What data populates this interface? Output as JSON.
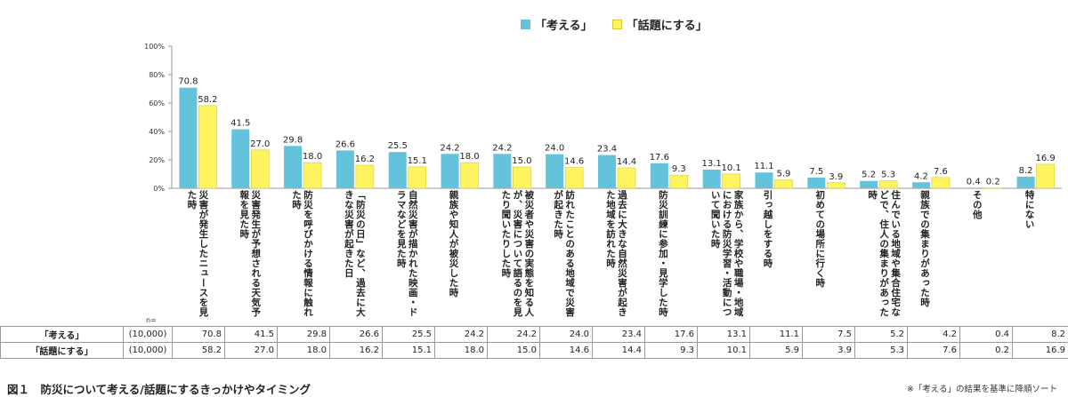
{
  "chart_data": {
    "type": "bar",
    "ylim": [
      0,
      100
    ],
    "yticks": [
      0,
      20,
      40,
      60,
      80,
      100
    ],
    "ytick_labels": [
      "0%",
      "20%",
      "40%",
      "60%",
      "80%",
      "100%"
    ],
    "legend_position": "top",
    "categories": [
      "災害が発生したニュースを見た時",
      "災害発生が予想される天気予報を見た時",
      "防災を呼びかける情報に触れた時",
      "「防災の日」など、過去に大きな災害が起きた日",
      "自然災害が描かれた映画・ドラマなどを見た時",
      "親族や知人が被災した時",
      "被災者や災害の実態を知る人が、災害について語るのを見たり聞いたりした時",
      "訪れたことのある地域で災害が起きた時",
      "過去に大きな自然災害が起きた地域を訪れた時",
      "防災訓練に参加・見学した時",
      "家族から、学校や職場・地域における防災学習・活動について聞いた時",
      "引っ越しをする時",
      "初めての場所に行く時",
      "住んでいる地域や集合住宅などで、住人の集まりがあった時",
      "親族での集まりがあった時",
      "その他",
      "特にない"
    ],
    "series": [
      {
        "name": "「考える」",
        "color": "#63C3DC",
        "values": [
          70.8,
          41.5,
          29.8,
          26.6,
          25.5,
          24.2,
          24.2,
          24.0,
          23.4,
          17.6,
          13.1,
          11.1,
          7.5,
          5.2,
          4.2,
          0.4,
          8.2
        ]
      },
      {
        "name": "「話題にする」",
        "color": "#FFF460",
        "values": [
          58.2,
          27.0,
          18.0,
          16.2,
          15.1,
          18.0,
          15.0,
          14.6,
          14.4,
          9.3,
          10.1,
          5.9,
          3.9,
          5.3,
          7.6,
          0.2,
          16.9
        ]
      }
    ],
    "value_labels": [
      [
        "70.8",
        "41.5",
        "29.8",
        "26.6",
        "25.5",
        "24.2",
        "24.2",
        "24.0",
        "23.4",
        "17.6",
        "13.1",
        "11.1",
        "7.5",
        "5.2",
        "4.2",
        "0.4",
        "8.2"
      ],
      [
        "58.2",
        "27.0",
        "18.0",
        "16.2",
        "15.1",
        "18.0",
        "15.0",
        "14.6",
        "14.4",
        "9.3",
        "10.1",
        "5.9",
        "3.9",
        "5.3",
        "7.6",
        "0.2",
        "16.9"
      ]
    ]
  },
  "legend": {
    "items": [
      "「考える」",
      "「話題にする」"
    ]
  },
  "table": {
    "n_label": "n=",
    "rows": [
      {
        "name": "「考える」",
        "base": "(10,000)",
        "values": [
          "70.8",
          "41.5",
          "29.8",
          "26.6",
          "25.5",
          "24.2",
          "24.2",
          "24.0",
          "23.4",
          "17.6",
          "13.1",
          "11.1",
          "7.5",
          "5.2",
          "4.2",
          "0.4",
          "8.2"
        ]
      },
      {
        "name": "「話題にする」",
        "base": "(10,000)",
        "values": [
          "58.2",
          "27.0",
          "18.0",
          "16.2",
          "15.1",
          "18.0",
          "15.0",
          "14.6",
          "14.4",
          "9.3",
          "10.1",
          "5.9",
          "3.9",
          "5.3",
          "7.6",
          "0.2",
          "16.9"
        ]
      }
    ]
  },
  "caption": "図１　防災について考える/話題にするきっかけやタイミング",
  "note": "※「考える」の結果を基準に降順ソート",
  "colors": {
    "series1": "#63C3DC",
    "series2": "#FFF460",
    "axis": "#999999"
  }
}
